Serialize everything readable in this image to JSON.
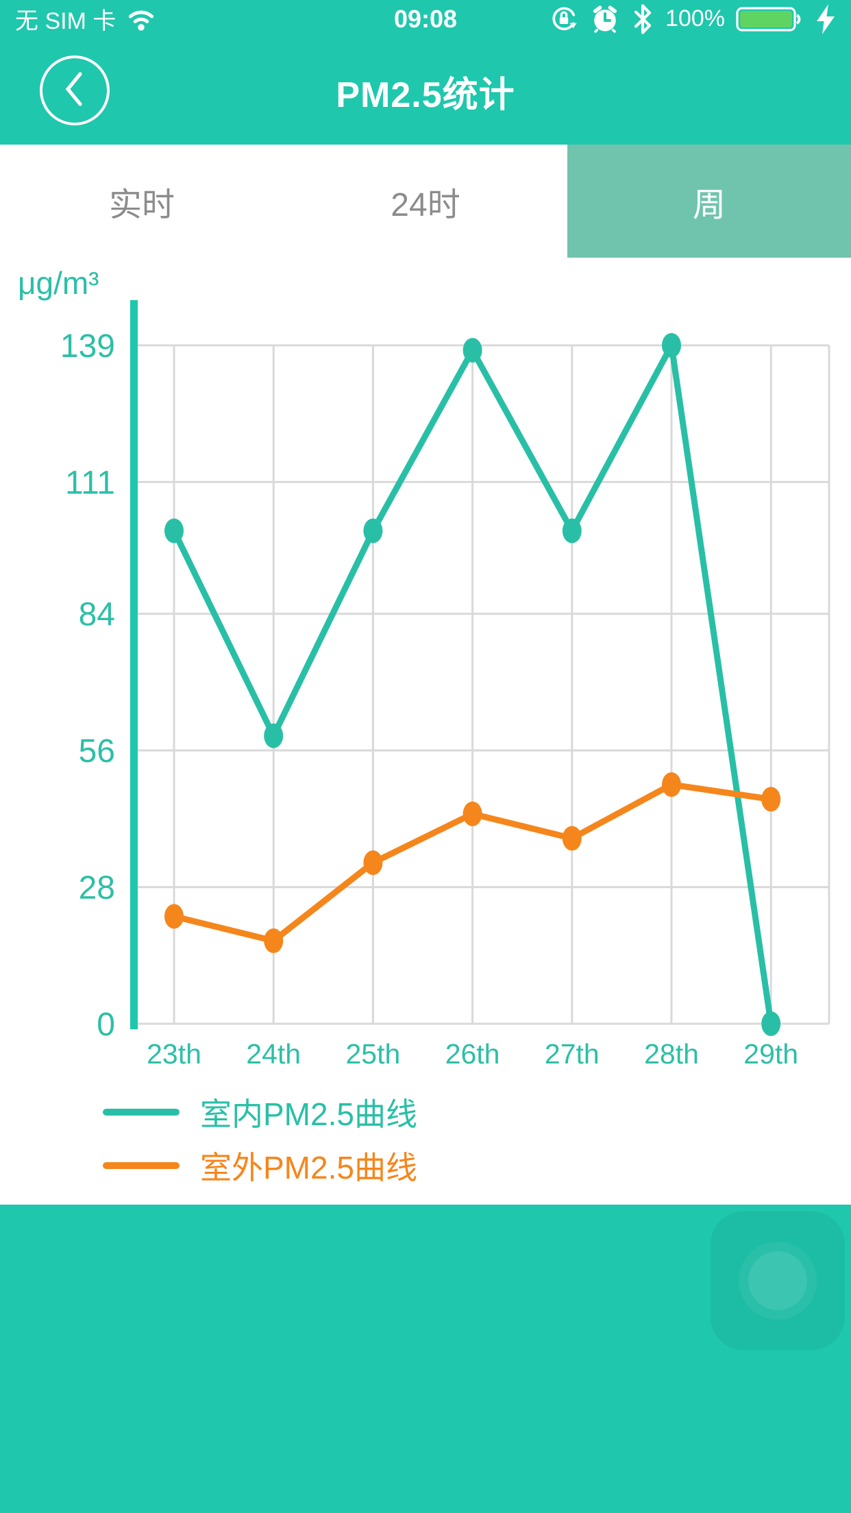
{
  "status_bar": {
    "carrier": "无 SIM 卡",
    "time": "09:08",
    "battery_percent": "100%",
    "icons": {
      "wifi": "wifi-icon",
      "orientation_lock": "orientation-lock-icon",
      "alarm": "alarm-clock-icon",
      "bluetooth": "bluetooth-icon",
      "battery": "battery-icon",
      "charging": "charging-bolt-icon"
    }
  },
  "header": {
    "title": "PM2.5统计",
    "back_icon": "back-chevron-icon"
  },
  "tabs": [
    {
      "label": "实时",
      "selected": false
    },
    {
      "label": "24时",
      "selected": false
    },
    {
      "label": "周",
      "selected": true
    }
  ],
  "colors": {
    "app_teal": "#1fc7ad",
    "tab_selected_bg": "#70c4ae",
    "tab_text": "#8c8c8c",
    "gridline": "#d9d9d9",
    "axis_text": "#2cbfa6",
    "battery_green": "#5fd463"
  },
  "chart_data": {
    "type": "line",
    "title": "PM2.5统计 - 周",
    "unit": "μg/m³",
    "xlabel": "",
    "ylabel": "μg/m³",
    "categories": [
      "23th",
      "24th",
      "25th",
      "26th",
      "27th",
      "28th",
      "29th"
    ],
    "yticks": [
      139,
      111,
      84,
      56,
      28,
      0
    ],
    "ylim": [
      0,
      139
    ],
    "grid": true,
    "legend_position": "bottom-left",
    "series": [
      {
        "name": "室内PM2.5曲线",
        "color": "#29bfa7",
        "values": [
          101,
          59,
          101,
          138,
          101,
          139,
          0
        ]
      },
      {
        "name": "室外PM2.5曲线",
        "color": "#f5861c",
        "values": [
          22,
          17,
          33,
          43,
          38,
          49,
          46
        ]
      }
    ]
  },
  "footer": {
    "ghost_button": "camera-shutter-ghost-button"
  }
}
